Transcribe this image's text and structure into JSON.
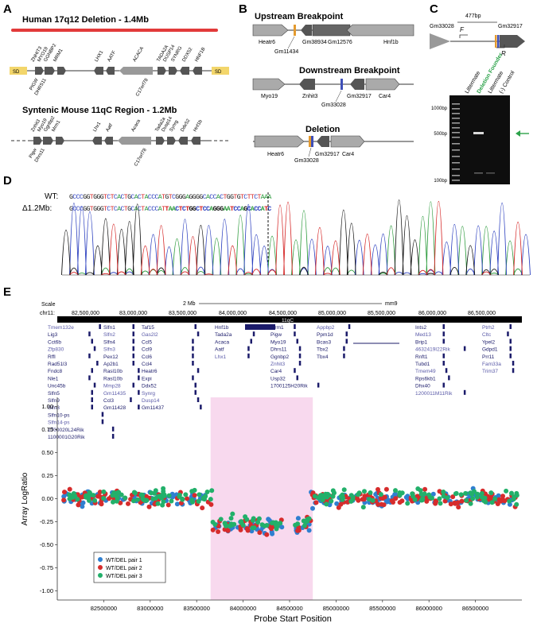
{
  "panel_labels": {
    "a": "A",
    "b": "B",
    "c": "C",
    "d": "D",
    "e": "E"
  },
  "panel_a": {
    "human_title": "Human 17q12 Deletion - 1.4Mb",
    "mouse_title": "Syntenic Mouse 11qC Region - 1.2Mb",
    "sd_label": "SD",
    "human_genes_top": [
      "ZNHIT3",
      "MYO19",
      "GGNBP2",
      "MRM1",
      "LHX1",
      "AATF",
      "ACACA",
      "TADA2A",
      "DUSP14",
      "SYNRG",
      "DDX52",
      "HNF1B"
    ],
    "human_genes_bottom": [
      "PIGW",
      "DHRS11",
      "C17orf78"
    ],
    "mouse_genes_top": [
      "Znhit3",
      "Myo19",
      "Ggnbp2",
      "Mrm1",
      "Lhx1",
      "Aatf",
      "Acaca",
      "Tada2a",
      "Dusp14",
      "Synrg",
      "Ddx52",
      "Hnf1b"
    ],
    "mouse_genes_bottom": [
      "Pigw",
      "Dhrs11",
      "C17orf78"
    ]
  },
  "panel_b": {
    "upstream_title": "Upstream Breakpoint",
    "downstream_title": "Downstream Breakpoint",
    "deletion_title": "Deletion",
    "up_genes": [
      "Heatr6",
      "Gm11434",
      "Gm38934",
      "Gm12576",
      "Hnf1b"
    ],
    "down_genes": [
      "Myo19",
      "Znhit3",
      "Gm33028",
      "Gm32917",
      "Car4"
    ],
    "del_genes": [
      "Heatr6",
      "Gm33028",
      "Gm32917",
      "Car4"
    ]
  },
  "panel_c": {
    "gene_left": "Gm33028",
    "gene_right": "Gm32917",
    "size": "477bp",
    "primer_f": "F",
    "primer_r": "R",
    "lanes": [
      "Littermate",
      "Deletion Founder",
      "Littermate",
      "(-) Control"
    ],
    "ladder": [
      "1000bp",
      "500bp",
      "100bp"
    ],
    "colors": {
      "founder": "#2ca24a",
      "arrow": "#2ca24a"
    }
  },
  "panel_d": {
    "wt_label": "WT:",
    "del_label": "Δ1.2Mb:",
    "wt_seq": "GCCCGGTGGGTCTCACTGCACTACCCATGTCGGGAGGGGCACCACTGGTGTCTTCTAAA",
    "del_seq": "GCCCGGTGGGTCTCACTGCACTACCCATTAACTCTGGCTCCAGGGAATCCAGCACCATC",
    "colors": {
      "A": "#2a9a3a",
      "C": "#2b3fbf",
      "G": "#111111",
      "T": "#d42020"
    }
  },
  "panel_e": {
    "scale_label": "Scale",
    "chr_label": "chr11:",
    "scale_text": "2 Mb",
    "assembly": "mm9",
    "band": "11qC",
    "coords": [
      "82,500,000",
      "83,000,000",
      "83,500,000",
      "84,000,000",
      "84,500,000",
      "85,000,000",
      "85,500,000",
      "86,000,000",
      "86,500,000"
    ],
    "genes_col1": [
      "Tmem132e",
      "Lig3",
      "Cct6b",
      "Zfp830",
      "Rffl",
      "Rad51l3",
      "Fndc8",
      "Nle1",
      "Unc45b",
      "Slfn5",
      "Slfn9",
      "Slfn8",
      "Slfn10-ps",
      "Slfn14-ps",
      "1700020L24Rik",
      "1100001G20Rik"
    ],
    "genes_col2": [
      "Slfn1",
      "Slfn2",
      "Slfn4",
      "Slfn3",
      "Pex12",
      "Ap2b1",
      "Rasl10b",
      "Rasl10b",
      "Mmp28",
      "Gm11435",
      "Ccl3",
      "Gm11428"
    ],
    "genes_col3": [
      "Taf15",
      "Gas2l2",
      "Ccl5",
      "Ccl9",
      "Ccl6",
      "Ccl4",
      "Heatr6",
      "Expi",
      "Ddx52",
      "Synrg",
      "Dusp14",
      "Gm11437"
    ],
    "genes_col4": [
      "Hnf1b",
      "Tada2a",
      "Acaca",
      "Aatf",
      "Lhx1"
    ],
    "genes_col5": [
      "Mrm1",
      "Pigw",
      "Myo19",
      "Dhrs11",
      "Ggnbp2",
      "Znhit3",
      "Car4",
      "Usp32",
      "1700125H20Rik"
    ],
    "genes_col6": [
      "Appbp2",
      "Ppm1d",
      "Bcas3",
      "Tbx2",
      "Tbx4"
    ],
    "genes_col7": [
      "Ints2",
      "Med13",
      "Brip1",
      "4632419I22Rik",
      "Rnft1",
      "Tubd1",
      "Tmem49",
      "Rps6kb1",
      "Dhx40",
      "1200011M11Rik"
    ],
    "genes_col8": [
      "Ptrh2",
      "Cltc",
      "Ypel2",
      "Gdpd1",
      "Prr11",
      "Fam33a",
      "Trim37"
    ],
    "ylabel": "Array LogRatio",
    "xlabel": "Probe Start Position",
    "legend": [
      "WT/DEL pair 1",
      "WT/DEL pair 2",
      "WT/DEL pair 3"
    ],
    "colors": {
      "pair1": "#2f7fd0",
      "pair2": "#d62c2c",
      "pair3": "#22b06a",
      "highlight": "#f8d9ee"
    }
  },
  "chart_data": {
    "type": "scatter",
    "title": "",
    "xlabel": "Probe Start Position",
    "ylabel": "Array LogRatio",
    "xlim": [
      82000000,
      87000000
    ],
    "ylim": [
      -1.1,
      1.1
    ],
    "x_ticks": [
      82500000,
      83000000,
      83500000,
      84000000,
      84500000,
      85000000,
      85500000,
      86000000,
      86500000
    ],
    "y_ticks": [
      1.0,
      0.75,
      0.5,
      0.25,
      0.0,
      -0.25,
      -0.5,
      -0.75,
      -1.0
    ],
    "deleted_region": [
      83650000,
      84750000
    ],
    "series": [
      {
        "name": "WT/DEL pair 1",
        "color": "#2f7fd0",
        "normal_mean": 0.0,
        "deleted_mean": -0.3,
        "spread": 0.08
      },
      {
        "name": "WT/DEL pair 2",
        "color": "#d62c2c",
        "normal_mean": 0.0,
        "deleted_mean": -0.3,
        "spread": 0.09
      },
      {
        "name": "WT/DEL pair 3",
        "color": "#22b06a",
        "normal_mean": 0.02,
        "deleted_mean": -0.27,
        "spread": 0.08
      }
    ]
  }
}
